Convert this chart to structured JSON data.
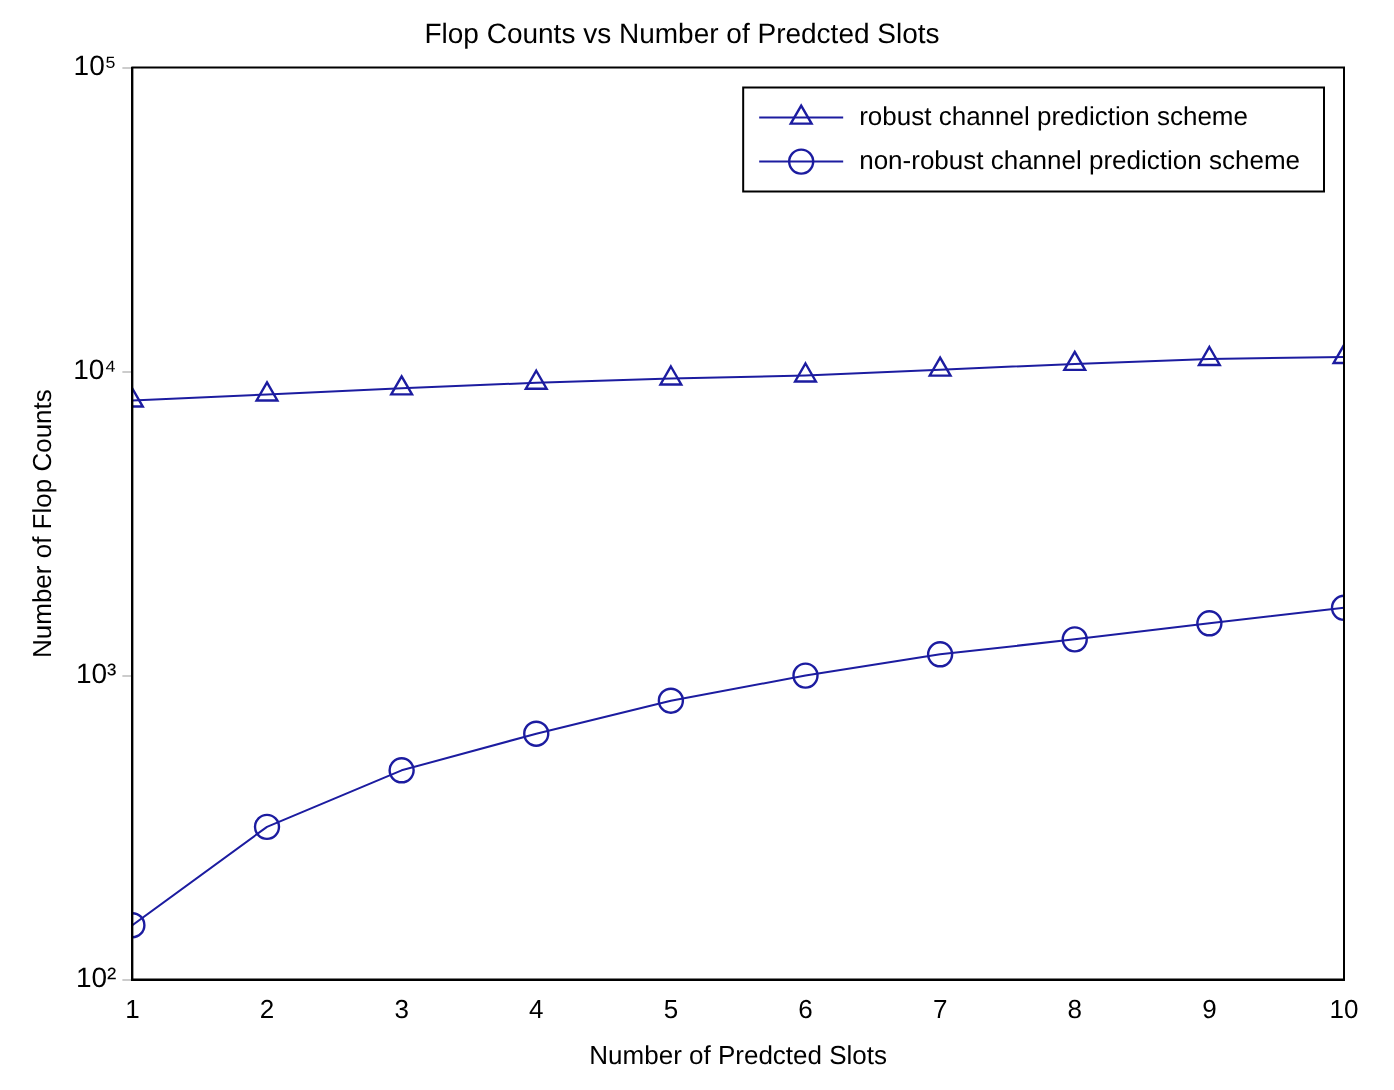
{
  "chart_data": {
    "type": "line",
    "title": "Flop Counts vs Number of Predcted Slots",
    "xlabel": "Number of Predcted Slots",
    "ylabel": "Number of Flop Counts",
    "x": [
      1,
      2,
      3,
      4,
      5,
      6,
      7,
      8,
      9,
      10
    ],
    "series": [
      {
        "name": "robust channel prediction scheme",
        "color": "#1c1ca0",
        "marker": "triangle",
        "values": [
          8030,
          8410,
          8810,
          9190,
          9490,
          9710,
          10150,
          10600,
          11000,
          11170
        ]
      },
      {
        "name": "non-robust channel prediction scheme",
        "color": "#1c1ca0",
        "marker": "circle",
        "values": [
          151,
          318,
          488,
          644,
          827,
          1000,
          1175,
          1316,
          1486,
          1671
        ]
      }
    ],
    "log": "y",
    "xlim": [
      1,
      10
    ],
    "xticks": [
      1,
      2,
      3,
      4,
      5,
      6,
      7,
      8,
      9,
      10
    ],
    "ylim": [
      100,
      100000
    ],
    "yticks": [
      {
        "value": 100,
        "label": "10²"
      },
      {
        "value": 1000,
        "label": "10³"
      },
      {
        "value": 10000,
        "label": "10⁴"
      },
      {
        "value": 100000,
        "label": "10⁵"
      }
    ],
    "grid": false,
    "legend": "top right"
  }
}
